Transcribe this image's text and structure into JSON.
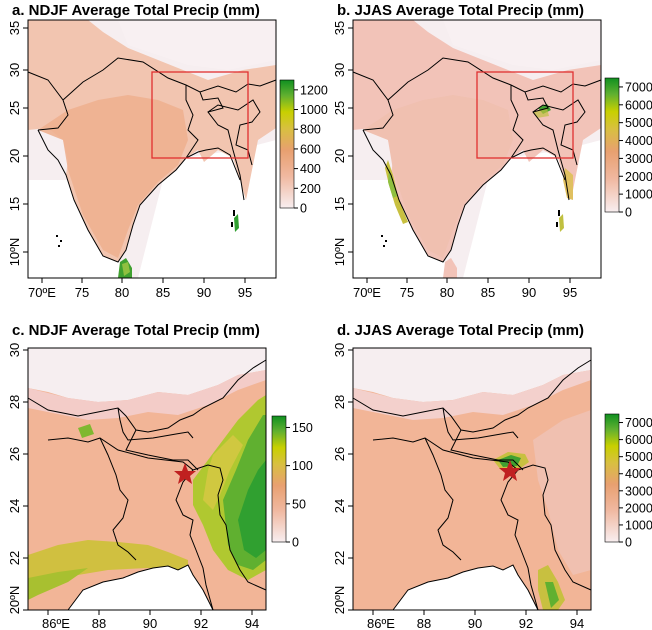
{
  "panels": {
    "a": {
      "title": "a. NDJF Average Total Precip (mm)",
      "x_ticks": [
        "70ºE",
        "75",
        "80",
        "85",
        "90",
        "95"
      ],
      "y_ticks": [
        "10ºN",
        "15",
        "20",
        "25",
        "30",
        "35"
      ],
      "colorbar_ticks": [
        "0",
        "200",
        "400",
        "600",
        "800",
        "1000",
        "1200"
      ],
      "colorbar_range": [
        0,
        1300
      ]
    },
    "b": {
      "title": "b. JJAS Average Total Precip (mm)",
      "x_ticks": [
        "70ºE",
        "75",
        "80",
        "85",
        "90",
        "95"
      ],
      "y_ticks": [
        "10ºN",
        "15",
        "20",
        "25",
        "30",
        "35"
      ],
      "colorbar_ticks": [
        "0",
        "1000",
        "2000",
        "3000",
        "4000",
        "5000",
        "6000",
        "7000"
      ],
      "colorbar_range": [
        0,
        7500
      ]
    },
    "c": {
      "title": "c. NDJF Average Total Precip (mm)",
      "x_ticks": [
        "86ºE",
        "88",
        "90",
        "92",
        "94"
      ],
      "y_ticks": [
        "20ºN",
        "22",
        "24",
        "26",
        "28",
        "30"
      ],
      "colorbar_ticks": [
        "0",
        "50",
        "100",
        "150"
      ],
      "colorbar_range": [
        0,
        165
      ]
    },
    "d": {
      "title": "d. JJAS Average Total Precip (mm)",
      "x_ticks": [
        "86ºE",
        "88",
        "90",
        "92",
        "94"
      ],
      "y_ticks": [
        "20ºN",
        "22",
        "24",
        "26",
        "28",
        "30"
      ],
      "colorbar_ticks": [
        "0",
        "1000",
        "2000",
        "3000",
        "4000",
        "5000",
        "6000",
        "7000"
      ],
      "colorbar_range": [
        0,
        7500
      ]
    }
  },
  "colors": {
    "low": "#f6e8e8",
    "mid": "#f0a882",
    "high_yellow": "#d4d000",
    "high_green": "#1a9a2a",
    "box": "#e03030",
    "star": "#c02020",
    "land": "#f2b597",
    "ocean": "#ffffff"
  },
  "markers": {
    "study_site": "star-icon"
  }
}
